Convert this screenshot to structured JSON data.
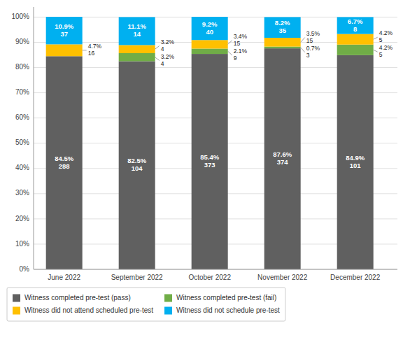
{
  "chart_data": {
    "type": "bar",
    "stacked": true,
    "data_labels": true,
    "grid": true,
    "legend": "bottom",
    "categories": [
      "June 2022",
      "September 2022",
      "October 2022",
      "November 2022",
      "December 2022"
    ],
    "series": [
      {
        "name": "Witness completed pre-test (pass)",
        "color": "#606060",
        "values": [
          84.5,
          82.5,
          85.4,
          87.6,
          84.9
        ],
        "value_labels": [
          "84.5%",
          "82.5%",
          "85.4%",
          "87.6%",
          "84.9%"
        ],
        "counts": [
          288,
          104,
          373,
          374,
          101
        ]
      },
      {
        "name": "Witness completed pre-test (fail)",
        "color": "#70ad47",
        "values": [
          0.0,
          3.2,
          2.1,
          0.7,
          4.2
        ],
        "value_labels": [
          null,
          "3.2%",
          "2.1%",
          "0.7%",
          "4.2%"
        ],
        "counts": [
          null,
          4,
          9,
          3,
          5
        ]
      },
      {
        "name": "Witness did not attend scheduled pre-test",
        "color": "#ffc000",
        "values": [
          4.7,
          3.2,
          3.4,
          3.5,
          4.2
        ],
        "value_labels": [
          "4.7%",
          "3.2%",
          "3.4%",
          "3.5%",
          "4.2%"
        ],
        "counts": [
          16,
          4,
          15,
          15,
          5
        ]
      },
      {
        "name": "Witness did not schedule pre-test",
        "color": "#00b0f0",
        "values": [
          10.9,
          11.1,
          9.2,
          8.2,
          6.7
        ],
        "value_labels": [
          "10.9%",
          "11.1%",
          "9.2%",
          "8.2%",
          "6.7%"
        ],
        "counts": [
          37,
          14,
          40,
          35,
          8
        ]
      }
    ],
    "ylim": [
      0,
      104
    ],
    "yticks": [
      {
        "value": 0,
        "label": "0%"
      },
      {
        "value": 10,
        "label": "10%"
      },
      {
        "value": 20,
        "label": "20%"
      },
      {
        "value": 30,
        "label": "30%"
      },
      {
        "value": 40,
        "label": "40%"
      },
      {
        "value": 50,
        "label": "50%"
      },
      {
        "value": 60,
        "label": "60%"
      },
      {
        "value": 70,
        "label": "70%"
      },
      {
        "value": 80,
        "label": "80%"
      },
      {
        "value": 90,
        "label": "90%"
      },
      {
        "value": 100,
        "label": "100%"
      }
    ]
  }
}
